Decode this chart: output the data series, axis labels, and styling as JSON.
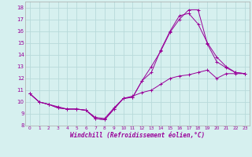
{
  "xlabel": "Windchill (Refroidissement éolien,°C)",
  "background_color": "#d6f0ef",
  "grid_color": "#b8dada",
  "line_color": "#990099",
  "xlim": [
    -0.5,
    23.5
  ],
  "ylim": [
    8,
    18.5
  ],
  "xticks": [
    0,
    1,
    2,
    3,
    4,
    5,
    6,
    7,
    8,
    9,
    10,
    11,
    12,
    13,
    14,
    15,
    16,
    17,
    18,
    19,
    20,
    21,
    22,
    23
  ],
  "yticks": [
    8,
    9,
    10,
    11,
    12,
    13,
    14,
    15,
    16,
    17,
    18
  ],
  "line1_x": [
    0,
    1,
    2,
    3,
    4,
    5,
    6,
    7,
    8,
    9,
    10,
    11,
    12,
    13,
    14,
    15,
    16,
    17,
    18,
    19,
    20,
    21,
    22,
    23
  ],
  "line1_y": [
    10.7,
    10.0,
    9.8,
    9.5,
    9.4,
    9.4,
    9.3,
    8.6,
    8.5,
    9.4,
    10.3,
    10.4,
    11.8,
    13.0,
    14.3,
    15.9,
    17.0,
    17.8,
    17.8,
    14.9,
    13.4,
    12.9,
    12.5,
    12.4
  ],
  "line2_x": [
    0,
    1,
    2,
    3,
    4,
    5,
    6,
    7,
    8,
    9,
    10,
    11,
    12,
    13,
    14,
    15,
    16,
    17,
    18,
    19,
    20,
    21,
    22,
    23
  ],
  "line2_y": [
    10.7,
    10.0,
    9.8,
    9.5,
    9.4,
    9.4,
    9.3,
    8.6,
    8.5,
    9.4,
    10.3,
    10.4,
    11.8,
    12.5,
    14.4,
    16.0,
    17.3,
    17.5,
    16.6,
    15.0,
    13.8,
    13.0,
    12.5,
    12.4
  ],
  "line3_x": [
    0,
    1,
    2,
    3,
    4,
    5,
    6,
    7,
    8,
    9,
    10,
    11,
    12,
    13,
    14,
    15,
    16,
    17,
    18,
    19,
    20,
    21,
    22,
    23
  ],
  "line3_y": [
    10.7,
    10.0,
    9.8,
    9.6,
    9.4,
    9.4,
    9.3,
    8.7,
    8.6,
    9.5,
    10.3,
    10.5,
    10.8,
    11.0,
    11.5,
    12.0,
    12.2,
    12.3,
    12.5,
    12.7,
    12.0,
    12.4,
    12.4,
    12.4
  ]
}
